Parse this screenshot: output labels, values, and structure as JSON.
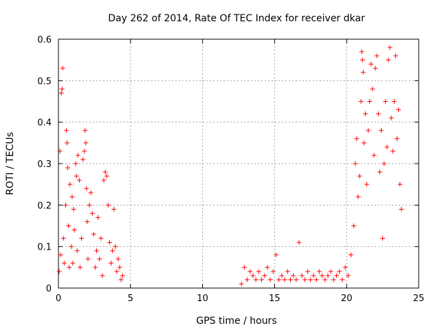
{
  "chart_data": {
    "type": "scatter",
    "title": "Day 262 of 2014, Rate Of TEC Index for receiver dkar",
    "xlabel": "GPS time / hours",
    "ylabel": "ROTI / TECUs",
    "xlim": [
      0,
      25
    ],
    "ylim": [
      0,
      0.6
    ],
    "x_ticks": [
      "0",
      "5",
      "10",
      "15",
      "20",
      "25"
    ],
    "y_ticks": [
      "0",
      "0.1",
      "0.2",
      "0.3",
      "0.4",
      "0.5",
      "0.6"
    ],
    "grid": true,
    "marker": "+",
    "marker_color": "#ff0000",
    "series": [
      {
        "name": "",
        "points": [
          [
            0.05,
            0.04
          ],
          [
            0.1,
            0.33
          ],
          [
            0.15,
            0.08
          ],
          [
            0.2,
            0.47
          ],
          [
            0.25,
            0.48
          ],
          [
            0.3,
            0.53
          ],
          [
            0.35,
            0.12
          ],
          [
            0.4,
            0.06
          ],
          [
            0.5,
            0.2
          ],
          [
            0.55,
            0.38
          ],
          [
            0.6,
            0.35
          ],
          [
            0.65,
            0.29
          ],
          [
            0.7,
            0.15
          ],
          [
            0.75,
            0.05
          ],
          [
            0.8,
            0.25
          ],
          [
            0.9,
            0.1
          ],
          [
            0.95,
            0.22
          ],
          [
            1.0,
            0.06
          ],
          [
            1.05,
            0.19
          ],
          [
            1.1,
            0.14
          ],
          [
            1.2,
            0.3
          ],
          [
            1.25,
            0.27
          ],
          [
            1.3,
            0.09
          ],
          [
            1.35,
            0.32
          ],
          [
            1.45,
            0.26
          ],
          [
            1.5,
            0.05
          ],
          [
            1.6,
            0.12
          ],
          [
            1.7,
            0.31
          ],
          [
            1.8,
            0.33
          ],
          [
            1.85,
            0.38
          ],
          [
            1.9,
            0.35
          ],
          [
            1.95,
            0.24
          ],
          [
            2.0,
            0.16
          ],
          [
            2.05,
            0.07
          ],
          [
            2.15,
            0.2
          ],
          [
            2.25,
            0.23
          ],
          [
            2.35,
            0.18
          ],
          [
            2.45,
            0.13
          ],
          [
            2.55,
            0.05
          ],
          [
            2.65,
            0.09
          ],
          [
            2.75,
            0.17
          ],
          [
            2.85,
            0.07
          ],
          [
            2.95,
            0.12
          ],
          [
            3.05,
            0.03
          ],
          [
            3.15,
            0.26
          ],
          [
            3.25,
            0.28
          ],
          [
            3.35,
            0.27
          ],
          [
            3.45,
            0.2
          ],
          [
            3.55,
            0.11
          ],
          [
            3.65,
            0.06
          ],
          [
            3.75,
            0.09
          ],
          [
            3.85,
            0.19
          ],
          [
            3.95,
            0.1
          ],
          [
            4.05,
            0.04
          ],
          [
            4.15,
            0.07
          ],
          [
            4.25,
            0.05
          ],
          [
            4.35,
            0.02
          ],
          [
            4.45,
            0.03
          ],
          [
            12.7,
            0.01
          ],
          [
            12.9,
            0.05
          ],
          [
            13.1,
            0.02
          ],
          [
            13.3,
            0.04
          ],
          [
            13.5,
            0.03
          ],
          [
            13.7,
            0.02
          ],
          [
            13.9,
            0.04
          ],
          [
            14.1,
            0.02
          ],
          [
            14.3,
            0.03
          ],
          [
            14.5,
            0.05
          ],
          [
            14.7,
            0.02
          ],
          [
            14.9,
            0.04
          ],
          [
            15.1,
            0.08
          ],
          [
            15.3,
            0.02
          ],
          [
            15.5,
            0.03
          ],
          [
            15.7,
            0.02
          ],
          [
            15.9,
            0.04
          ],
          [
            16.1,
            0.02
          ],
          [
            16.3,
            0.03
          ],
          [
            16.5,
            0.02
          ],
          [
            16.7,
            0.11
          ],
          [
            16.9,
            0.03
          ],
          [
            17.1,
            0.02
          ],
          [
            17.3,
            0.04
          ],
          [
            17.5,
            0.02
          ],
          [
            17.7,
            0.03
          ],
          [
            17.9,
            0.02
          ],
          [
            18.1,
            0.04
          ],
          [
            18.3,
            0.03
          ],
          [
            18.5,
            0.02
          ],
          [
            18.7,
            0.03
          ],
          [
            18.9,
            0.04
          ],
          [
            19.1,
            0.02
          ],
          [
            19.3,
            0.03
          ],
          [
            19.5,
            0.04
          ],
          [
            19.7,
            0.02
          ],
          [
            19.9,
            0.05
          ],
          [
            20.1,
            0.03
          ],
          [
            20.3,
            0.08
          ],
          [
            20.5,
            0.15
          ],
          [
            20.6,
            0.3
          ],
          [
            20.7,
            0.36
          ],
          [
            20.8,
            0.22
          ],
          [
            20.9,
            0.27
          ],
          [
            21.0,
            0.45
          ],
          [
            21.05,
            0.57
          ],
          [
            21.1,
            0.55
          ],
          [
            21.15,
            0.52
          ],
          [
            21.2,
            0.35
          ],
          [
            21.3,
            0.42
          ],
          [
            21.4,
            0.25
          ],
          [
            21.5,
            0.38
          ],
          [
            21.6,
            0.45
          ],
          [
            21.7,
            0.54
          ],
          [
            21.8,
            0.48
          ],
          [
            21.9,
            0.32
          ],
          [
            22.0,
            0.53
          ],
          [
            22.1,
            0.56
          ],
          [
            22.2,
            0.42
          ],
          [
            22.3,
            0.28
          ],
          [
            22.4,
            0.38
          ],
          [
            22.5,
            0.12
          ],
          [
            22.6,
            0.3
          ],
          [
            22.7,
            0.45
          ],
          [
            22.8,
            0.34
          ],
          [
            22.9,
            0.55
          ],
          [
            23.0,
            0.58
          ],
          [
            23.1,
            0.41
          ],
          [
            23.2,
            0.33
          ],
          [
            23.3,
            0.45
          ],
          [
            23.4,
            0.56
          ],
          [
            23.5,
            0.36
          ],
          [
            23.6,
            0.43
          ],
          [
            23.7,
            0.25
          ],
          [
            23.8,
            0.19
          ]
        ]
      }
    ]
  }
}
